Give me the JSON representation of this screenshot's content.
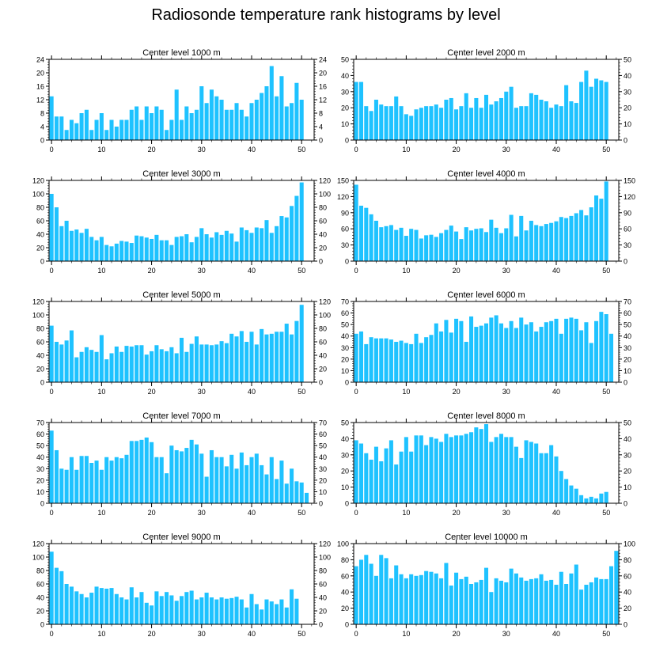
{
  "figure_title": "Radiosonde temperature rank histograms by level",
  "colors": {
    "bar": "#1ec2ff",
    "axis": "#000000"
  },
  "chart_data": [
    {
      "type": "bar",
      "title": "Center level 1000 m",
      "xlabel": "",
      "ylabel": "",
      "xlim": [
        -0.5,
        52.5
      ],
      "ylim": [
        0,
        24
      ],
      "xticks": [
        0,
        10,
        20,
        30,
        40,
        50
      ],
      "yticks": [
        0,
        4,
        8,
        12,
        16,
        20,
        24
      ],
      "values": [
        13,
        7,
        7,
        3,
        6,
        5,
        8,
        9,
        3,
        6,
        8,
        3,
        6,
        4,
        6,
        6,
        9,
        10,
        6,
        10,
        8,
        10,
        9,
        3,
        6,
        15,
        6,
        10,
        8,
        9,
        16,
        11,
        15,
        13,
        12,
        9,
        9,
        11,
        9,
        7,
        11,
        12,
        14,
        16,
        22,
        13,
        19,
        10,
        11,
        17,
        12
      ]
    },
    {
      "type": "bar",
      "title": "Center level 2000 m",
      "xlabel": "",
      "ylabel": "",
      "xlim": [
        -0.5,
        52.5
      ],
      "ylim": [
        0,
        50
      ],
      "xticks": [
        0,
        10,
        20,
        30,
        40,
        50
      ],
      "yticks": [
        0,
        10,
        20,
        30,
        40,
        50
      ],
      "values": [
        36,
        36,
        21,
        18,
        25,
        22,
        21,
        21,
        27,
        21,
        16,
        15,
        19,
        20,
        21,
        21,
        22,
        20,
        25,
        26,
        19,
        21,
        29,
        20,
        26,
        20,
        28,
        22,
        24,
        26,
        30,
        33,
        20,
        21,
        21,
        29,
        28,
        25,
        24,
        20,
        22,
        21,
        34,
        24,
        23,
        36,
        43,
        33,
        38,
        37,
        36
      ]
    },
    {
      "type": "bar",
      "title": "Center level 3000 m",
      "xlabel": "",
      "ylabel": "",
      "xlim": [
        -0.5,
        52.5
      ],
      "ylim": [
        0,
        120
      ],
      "xticks": [
        0,
        10,
        20,
        30,
        40,
        50
      ],
      "yticks": [
        0,
        20,
        40,
        60,
        80,
        100,
        120
      ],
      "values": [
        100,
        80,
        52,
        60,
        45,
        47,
        42,
        48,
        36,
        31,
        36,
        24,
        22,
        26,
        30,
        29,
        27,
        38,
        37,
        35,
        33,
        39,
        31,
        31,
        24,
        36,
        37,
        40,
        28,
        36,
        49,
        40,
        35,
        43,
        39,
        45,
        41,
        29,
        50,
        46,
        42,
        50,
        49,
        61,
        42,
        52,
        67,
        65,
        82,
        97,
        117
      ]
    },
    {
      "type": "bar",
      "title": "Center level 4000 m",
      "xlabel": "",
      "ylabel": "",
      "xlim": [
        -0.5,
        52.5
      ],
      "ylim": [
        0,
        150
      ],
      "xticks": [
        0,
        10,
        20,
        30,
        40,
        50
      ],
      "yticks": [
        0,
        30,
        60,
        90,
        120,
        150
      ],
      "values": [
        142,
        103,
        99,
        87,
        75,
        63,
        65,
        67,
        58,
        62,
        47,
        60,
        58,
        42,
        48,
        49,
        45,
        52,
        58,
        66,
        55,
        41,
        63,
        57,
        60,
        61,
        54,
        77,
        62,
        52,
        61,
        86,
        46,
        84,
        57,
        75,
        67,
        65,
        69,
        71,
        74,
        82,
        80,
        84,
        89,
        95,
        85,
        100,
        122,
        116,
        148
      ]
    },
    {
      "type": "bar",
      "title": "Center level 5000 m",
      "xlabel": "",
      "ylabel": "",
      "xlim": [
        -0.5,
        52.5
      ],
      "ylim": [
        0,
        120
      ],
      "xticks": [
        0,
        10,
        20,
        30,
        40,
        50
      ],
      "yticks": [
        0,
        20,
        40,
        60,
        80,
        100,
        120
      ],
      "values": [
        84,
        60,
        56,
        62,
        77,
        37,
        45,
        52,
        48,
        45,
        70,
        34,
        43,
        53,
        45,
        54,
        53,
        55,
        55,
        41,
        46,
        55,
        49,
        46,
        52,
        43,
        66,
        45,
        57,
        68,
        56,
        56,
        55,
        56,
        61,
        58,
        72,
        68,
        76,
        60,
        75,
        56,
        79,
        71,
        72,
        75,
        75,
        87,
        71,
        91,
        115
      ]
    },
    {
      "type": "bar",
      "title": "Center level 6000 m",
      "xlabel": "",
      "ylabel": "",
      "xlim": [
        -0.5,
        52.5
      ],
      "ylim": [
        0,
        70
      ],
      "xticks": [
        0,
        10,
        20,
        30,
        40,
        50
      ],
      "yticks": [
        0,
        10,
        20,
        30,
        40,
        50,
        60,
        70
      ],
      "values": [
        42,
        44,
        33,
        39,
        38,
        38,
        38,
        37,
        35,
        36,
        34,
        33,
        42,
        34,
        39,
        41,
        51,
        44,
        54,
        43,
        55,
        53,
        35,
        57,
        48,
        49,
        51,
        56,
        58,
        51,
        47,
        53,
        47,
        56,
        50,
        52,
        44,
        48,
        52,
        53,
        55,
        42,
        55,
        56,
        55,
        45,
        52,
        34,
        53,
        61,
        59,
        42
      ]
    },
    {
      "type": "bar",
      "title": "Center level 7000 m",
      "xlabel": "",
      "ylabel": "",
      "xlim": [
        -0.5,
        52.5
      ],
      "ylim": [
        0,
        70
      ],
      "xticks": [
        0,
        10,
        20,
        30,
        40,
        50
      ],
      "yticks": [
        0,
        10,
        20,
        30,
        40,
        50,
        60,
        70
      ],
      "values": [
        63,
        46,
        30,
        29,
        40,
        29,
        41,
        41,
        35,
        37,
        29,
        40,
        37,
        40,
        39,
        42,
        54,
        54,
        55,
        57,
        53,
        40,
        40,
        26,
        50,
        46,
        45,
        48,
        55,
        51,
        43,
        23,
        46,
        40,
        40,
        32,
        42,
        30,
        44,
        33,
        40,
        43,
        33,
        25,
        40,
        21,
        37,
        17,
        30,
        19,
        18,
        9
      ]
    },
    {
      "type": "bar",
      "title": "Center level 8000 m",
      "xlabel": "",
      "ylabel": "",
      "xlim": [
        -0.5,
        52.5
      ],
      "ylim": [
        0,
        50
      ],
      "xticks": [
        0,
        10,
        20,
        30,
        40,
        50
      ],
      "yticks": [
        0,
        10,
        20,
        30,
        40,
        50
      ],
      "values": [
        39,
        37,
        31,
        27,
        35,
        26,
        34,
        39,
        24,
        32,
        41,
        32,
        42,
        42,
        36,
        41,
        40,
        38,
        43,
        41,
        42,
        42,
        43,
        44,
        47,
        46,
        49,
        38,
        41,
        43,
        41,
        41,
        35,
        28,
        39,
        38,
        37,
        31,
        31,
        36,
        29,
        20,
        15,
        11,
        9,
        5,
        3,
        4,
        3,
        6,
        7
      ]
    },
    {
      "type": "bar",
      "title": "Center level 9000 m",
      "xlabel": "",
      "ylabel": "",
      "xlim": [
        -0.5,
        52.5
      ],
      "ylim": [
        0,
        120
      ],
      "xticks": [
        0,
        10,
        20,
        30,
        40,
        50
      ],
      "yticks": [
        0,
        20,
        40,
        60,
        80,
        100,
        120
      ],
      "values": [
        108,
        84,
        79,
        60,
        56,
        49,
        45,
        40,
        47,
        56,
        54,
        53,
        54,
        45,
        40,
        37,
        55,
        40,
        48,
        32,
        28,
        49,
        42,
        48,
        43,
        35,
        42,
        48,
        50,
        37,
        40,
        47,
        40,
        37,
        40,
        38,
        39,
        41,
        37,
        25,
        45,
        30,
        22,
        37,
        34,
        30,
        37,
        25,
        52,
        38
      ]
    },
    {
      "type": "bar",
      "title": "Center level 10000 m",
      "xlabel": "",
      "ylabel": "",
      "xlim": [
        -0.5,
        52.5
      ],
      "ylim": [
        0,
        100
      ],
      "xticks": [
        0,
        10,
        20,
        30,
        40,
        50
      ],
      "yticks": [
        0,
        20,
        40,
        60,
        80,
        100
      ],
      "values": [
        72,
        80,
        86,
        75,
        60,
        86,
        82,
        57,
        73,
        62,
        57,
        62,
        60,
        61,
        66,
        65,
        63,
        57,
        76,
        48,
        64,
        56,
        59,
        50,
        52,
        55,
        70,
        40,
        57,
        54,
        52,
        69,
        63,
        58,
        54,
        56,
        57,
        62,
        54,
        55,
        49,
        65,
        50,
        63,
        74,
        43,
        49,
        52,
        58,
        56,
        56,
        72,
        91
      ]
    }
  ]
}
